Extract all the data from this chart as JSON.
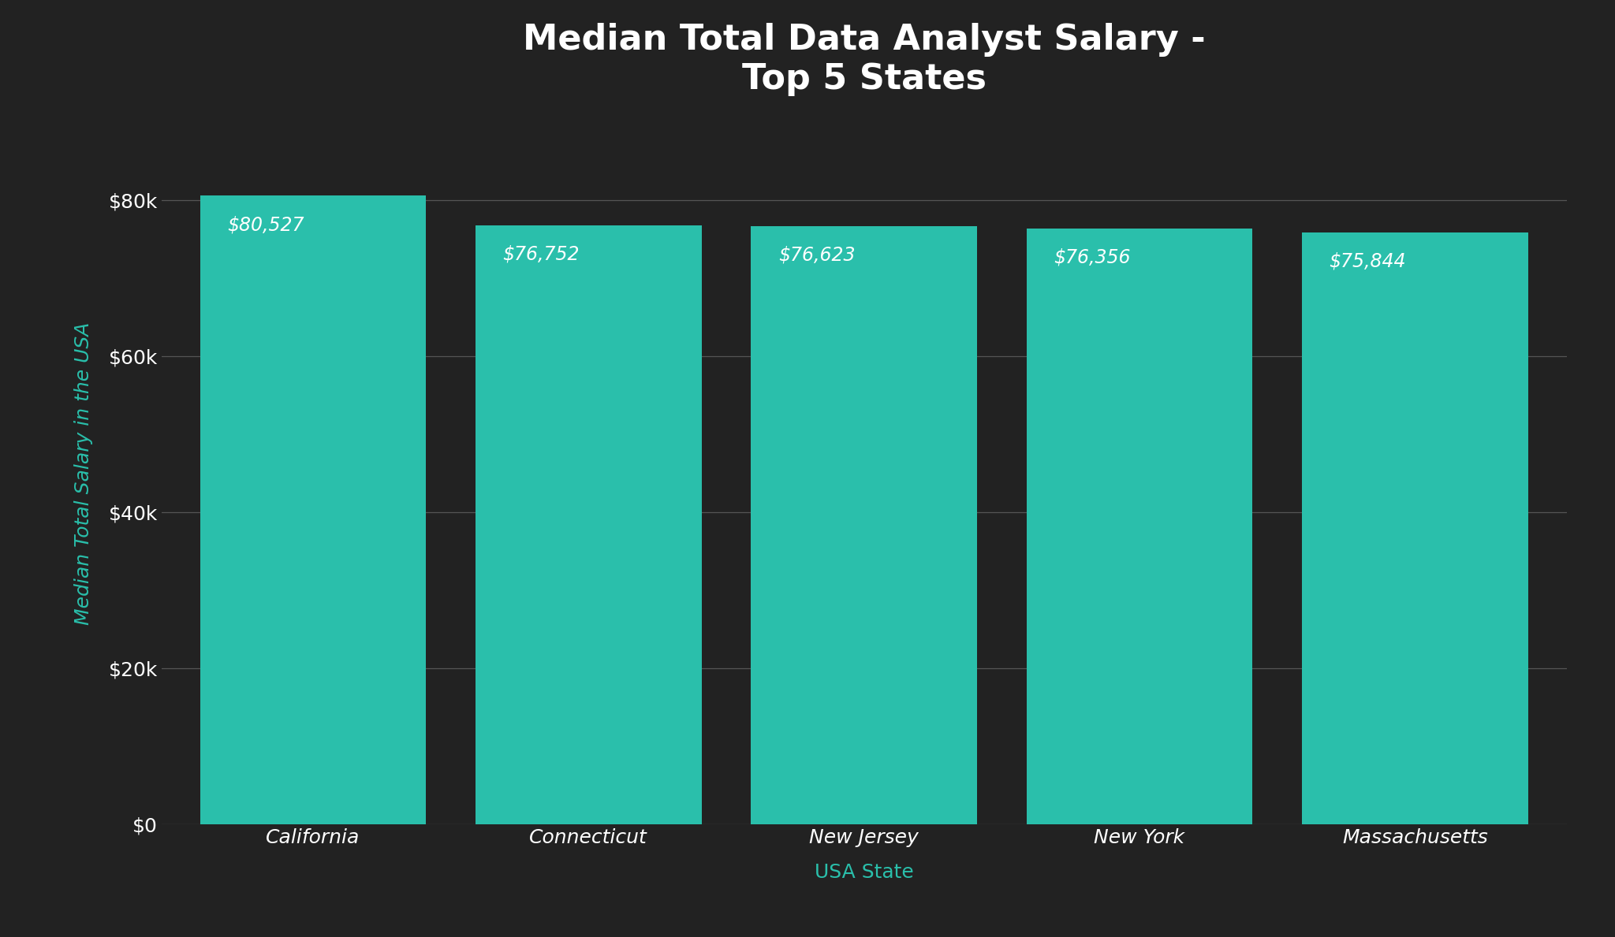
{
  "title": "Median Total Data Analyst Salary -\nTop 5 States",
  "categories": [
    "California",
    "Connecticut",
    "New Jersey",
    "New York",
    "Massachusetts"
  ],
  "values": [
    80527,
    76752,
    76623,
    76356,
    75844
  ],
  "labels": [
    "$80,527",
    "$76,752",
    "$76,623",
    "$76,356",
    "$75,844"
  ],
  "bar_color": "#2abfab",
  "background_color": "#222222",
  "title_color": "#ffffff",
  "tick_label_color": "#ffffff",
  "xlabel": "USA State",
  "ylabel": "Median Total Salary in the USA",
  "xlabel_color": "#2abfab",
  "ylabel_color": "#2abfab",
  "bar_label_color": "#ffffff",
  "gridcolor": "#555555",
  "ylim": [
    0,
    90000
  ],
  "yticks": [
    0,
    20000,
    40000,
    60000,
    80000
  ],
  "ytick_labels": [
    "$0",
    "$20k",
    "$40k",
    "$60k",
    "$80k"
  ],
  "title_fontsize": 32,
  "axis_label_fontsize": 18,
  "tick_fontsize": 18,
  "bar_label_fontsize": 17
}
